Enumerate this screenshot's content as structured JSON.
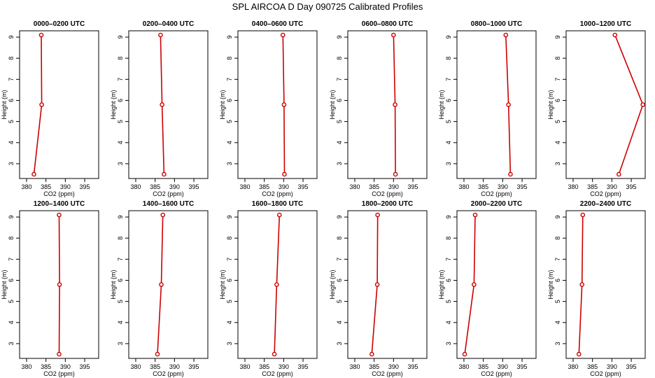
{
  "page": {
    "title": "SPL AIRCOA D  Day 090725  Calibrated Profiles"
  },
  "colors": {
    "line": "#cc0000",
    "axis": "#000000",
    "background": "#ffffff"
  },
  "chart_data": [
    {
      "type": "line",
      "title": "0000–0200 UTC",
      "xlabel": "CO2 (ppm)",
      "ylabel": "Height (m)",
      "xticks": [
        380,
        385,
        390,
        395
      ],
      "yticks": [
        3,
        4,
        5,
        6,
        7,
        8,
        9
      ],
      "ylim": [
        2.3,
        9.3
      ],
      "series": [
        {
          "x": [
            381.9,
            383.9,
            383.8
          ],
          "y": [
            2.5,
            5.8,
            9.1
          ]
        }
      ]
    },
    {
      "type": "line",
      "title": "0200–0400 UTC",
      "xlabel": "CO2 (ppm)",
      "ylabel": "Height (m)",
      "xticks": [
        380,
        385,
        390,
        395
      ],
      "yticks": [
        3,
        4,
        5,
        6,
        7,
        8,
        9
      ],
      "ylim": [
        2.3,
        9.3
      ],
      "series": [
        {
          "x": [
            387.3,
            386.8,
            386.4
          ],
          "y": [
            2.5,
            5.8,
            9.1
          ]
        }
      ]
    },
    {
      "type": "line",
      "title": "0400–0600 UTC",
      "xlabel": "CO2 (ppm)",
      "ylabel": "Height (m)",
      "xticks": [
        380,
        385,
        390,
        395
      ],
      "yticks": [
        3,
        4,
        5,
        6,
        7,
        8,
        9
      ],
      "ylim": [
        2.3,
        9.3
      ],
      "series": [
        {
          "x": [
            390.2,
            390.1,
            389.8
          ],
          "y": [
            2.5,
            5.8,
            9.1
          ]
        }
      ]
    },
    {
      "type": "line",
      "title": "0600–0800 UTC",
      "xlabel": "CO2 (ppm)",
      "ylabel": "Height (m)",
      "xticks": [
        380,
        385,
        390,
        395
      ],
      "yticks": [
        3,
        4,
        5,
        6,
        7,
        8,
        9
      ],
      "ylim": [
        2.3,
        9.3
      ],
      "series": [
        {
          "x": [
            390.5,
            390.4,
            390.0
          ],
          "y": [
            2.5,
            5.8,
            9.1
          ]
        }
      ]
    },
    {
      "type": "line",
      "title": "0800–1000 UTC",
      "xlabel": "CO2 (ppm)",
      "ylabel": "Height (m)",
      "xticks": [
        380,
        385,
        390,
        395
      ],
      "yticks": [
        3,
        4,
        5,
        6,
        7,
        8,
        9
      ],
      "ylim": [
        2.3,
        9.3
      ],
      "series": [
        {
          "x": [
            392.0,
            391.5,
            390.8
          ],
          "y": [
            2.5,
            5.8,
            9.1
          ]
        }
      ]
    },
    {
      "type": "line",
      "title": "1000–1200 UTC",
      "xlabel": "CO2 (ppm)",
      "ylabel": "Height (m)",
      "xticks": [
        380,
        385,
        390,
        395
      ],
      "yticks": [
        3,
        4,
        5,
        6,
        7,
        8,
        9
      ],
      "ylim": [
        2.3,
        9.3
      ],
      "series": [
        {
          "x": [
            391.8,
            398.0,
            390.8
          ],
          "y": [
            2.5,
            5.8,
            9.1
          ]
        }
      ]
    },
    {
      "type": "line",
      "title": "1200–1400 UTC",
      "xlabel": "CO2 (ppm)",
      "ylabel": "Height (m)",
      "xticks": [
        380,
        385,
        390,
        395
      ],
      "yticks": [
        3,
        4,
        5,
        6,
        7,
        8,
        9
      ],
      "ylim": [
        2.3,
        9.3
      ],
      "series": [
        {
          "x": [
            388.4,
            388.5,
            388.4
          ],
          "y": [
            2.5,
            5.8,
            9.1
          ]
        }
      ]
    },
    {
      "type": "line",
      "title": "1400–1600 UTC",
      "xlabel": "CO2 (ppm)",
      "ylabel": "Height (m)",
      "xticks": [
        380,
        385,
        390,
        395
      ],
      "yticks": [
        3,
        4,
        5,
        6,
        7,
        8,
        9
      ],
      "ylim": [
        2.3,
        9.3
      ],
      "series": [
        {
          "x": [
            385.6,
            386.6,
            387.0
          ],
          "y": [
            2.5,
            5.8,
            9.1
          ]
        }
      ]
    },
    {
      "type": "line",
      "title": "1600–1800 UTC",
      "xlabel": "CO2 (ppm)",
      "ylabel": "Height (m)",
      "xticks": [
        380,
        385,
        390,
        395
      ],
      "yticks": [
        3,
        4,
        5,
        6,
        7,
        8,
        9
      ],
      "ylim": [
        2.3,
        9.3
      ],
      "series": [
        {
          "x": [
            387.6,
            388.2,
            388.9
          ],
          "y": [
            2.5,
            5.8,
            9.1
          ]
        }
      ]
    },
    {
      "type": "line",
      "title": "1800–2000 UTC",
      "xlabel": "CO2 (ppm)",
      "ylabel": "Height (m)",
      "xticks": [
        380,
        385,
        390,
        395
      ],
      "yticks": [
        3,
        4,
        5,
        6,
        7,
        8,
        9
      ],
      "ylim": [
        2.3,
        9.3
      ],
      "series": [
        {
          "x": [
            384.4,
            385.8,
            385.9
          ],
          "y": [
            2.5,
            5.8,
            9.1
          ]
        }
      ]
    },
    {
      "type": "line",
      "title": "2000–2200 UTC",
      "xlabel": "CO2 (ppm)",
      "ylabel": "Height (m)",
      "xticks": [
        380,
        385,
        390,
        395
      ],
      "yticks": [
        3,
        4,
        5,
        6,
        7,
        8,
        9
      ],
      "ylim": [
        2.3,
        9.3
      ],
      "series": [
        {
          "x": [
            380.2,
            382.6,
            382.9
          ],
          "y": [
            2.5,
            5.8,
            9.1
          ]
        }
      ]
    },
    {
      "type": "line",
      "title": "2200–2400 UTC",
      "xlabel": "CO2 (ppm)",
      "ylabel": "Height (m)",
      "xticks": [
        380,
        385,
        390,
        395
      ],
      "yticks": [
        3,
        4,
        5,
        6,
        7,
        8,
        9
      ],
      "ylim": [
        2.3,
        9.3
      ],
      "series": [
        {
          "x": [
            381.5,
            382.3,
            382.5
          ],
          "y": [
            2.5,
            5.8,
            9.1
          ]
        }
      ]
    }
  ]
}
